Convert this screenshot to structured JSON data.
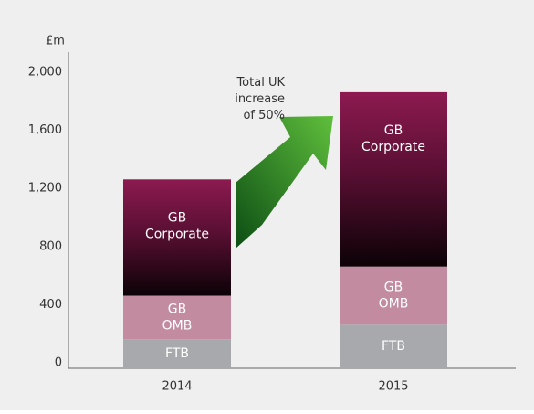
{
  "chart_data": {
    "type": "stacked_bar",
    "y_label": "£m",
    "categories": [
      "2014",
      "2015"
    ],
    "series": [
      {
        "name": "FTB",
        "color": "#a7a9ac",
        "values": [
          200,
          300
        ]
      },
      {
        "name": "GB OMB",
        "color": "#c28ba0",
        "values": [
          300,
          400
        ]
      },
      {
        "name": "GB Corporate",
        "color": "#8c1a50",
        "values": [
          800,
          1200
        ]
      }
    ],
    "annotation": [
      "Total UK",
      "increase",
      "of 50%"
    ],
    "ylim": [
      0,
      2000
    ],
    "yticks": [
      0,
      {
        "value": 400,
        "label": "400"
      },
      {
        "value": 800,
        "label": "800"
      },
      {
        "value": 1200,
        "label": "1,200"
      },
      {
        "value": 1600,
        "label": "1,600"
      },
      {
        "value": 2000,
        "label": "2,000"
      }
    ]
  }
}
